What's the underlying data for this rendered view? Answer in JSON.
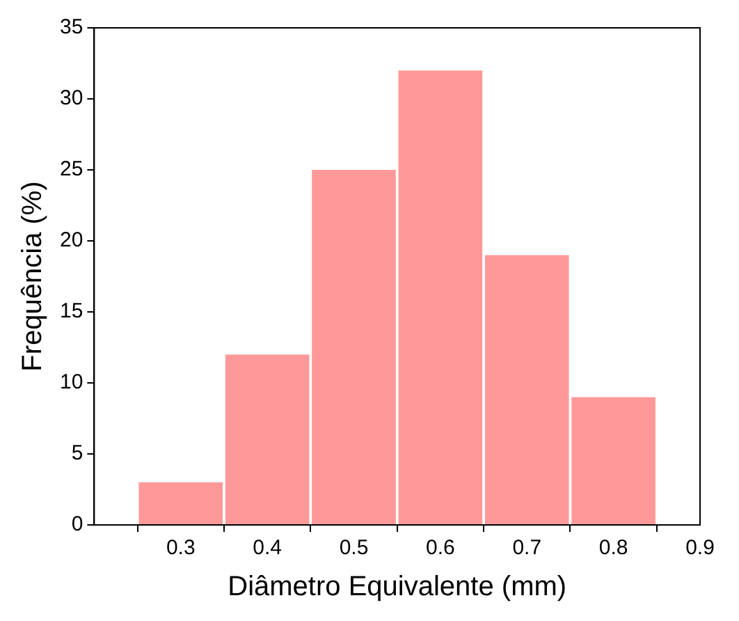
{
  "chart_data": {
    "type": "histogram",
    "xlabel": "Diâmetro Equivalente (mm)",
    "ylabel": "Frequência (%)",
    "bins": [
      0.25,
      0.35,
      0.45,
      0.55,
      0.65,
      0.75,
      0.85
    ],
    "values": [
      3,
      12,
      25,
      32,
      19,
      9
    ],
    "color": "#ff0000",
    "xlim": [
      0.2,
      0.9
    ],
    "xticks": [
      0.3,
      0.4,
      0.5,
      0.6,
      0.7,
      0.8,
      0.9
    ],
    "ylim": [
      0,
      35
    ],
    "yticks": [
      0,
      5,
      10,
      15,
      20,
      25,
      30,
      35
    ]
  }
}
